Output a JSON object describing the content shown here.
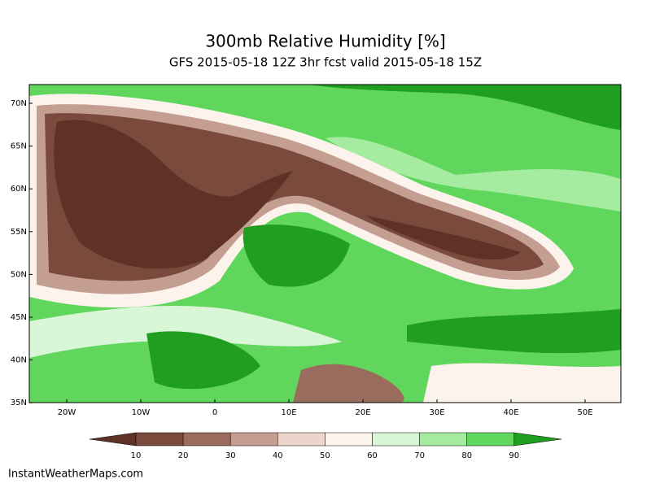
{
  "header": {
    "title": "300mb Relative Humidity [%]",
    "subtitle": "GFS 2015-05-18 12Z 3hr fcst valid 2015-05-18 15Z"
  },
  "map": {
    "lat_labels": [
      "70N",
      "65N",
      "60N",
      "55N",
      "50N",
      "45N",
      "40N",
      "35N"
    ],
    "lon_labels": [
      "20W",
      "10W",
      "0",
      "10E",
      "20E",
      "30E",
      "40E",
      "50E"
    ]
  },
  "legend": {
    "labels": [
      "10",
      "20",
      "30",
      "40",
      "50",
      "60",
      "70",
      "80",
      "90"
    ],
    "colors": [
      "#5e3226",
      "#7a4a3d",
      "#9a6c5e",
      "#c49e91",
      "#ecd6cb",
      "#fbf3ec",
      "#d9f6d6",
      "#a5eca0",
      "#60d75c",
      "#1f9e1f"
    ]
  },
  "footer": {
    "credit": "InstantWeatherMaps.com"
  }
}
